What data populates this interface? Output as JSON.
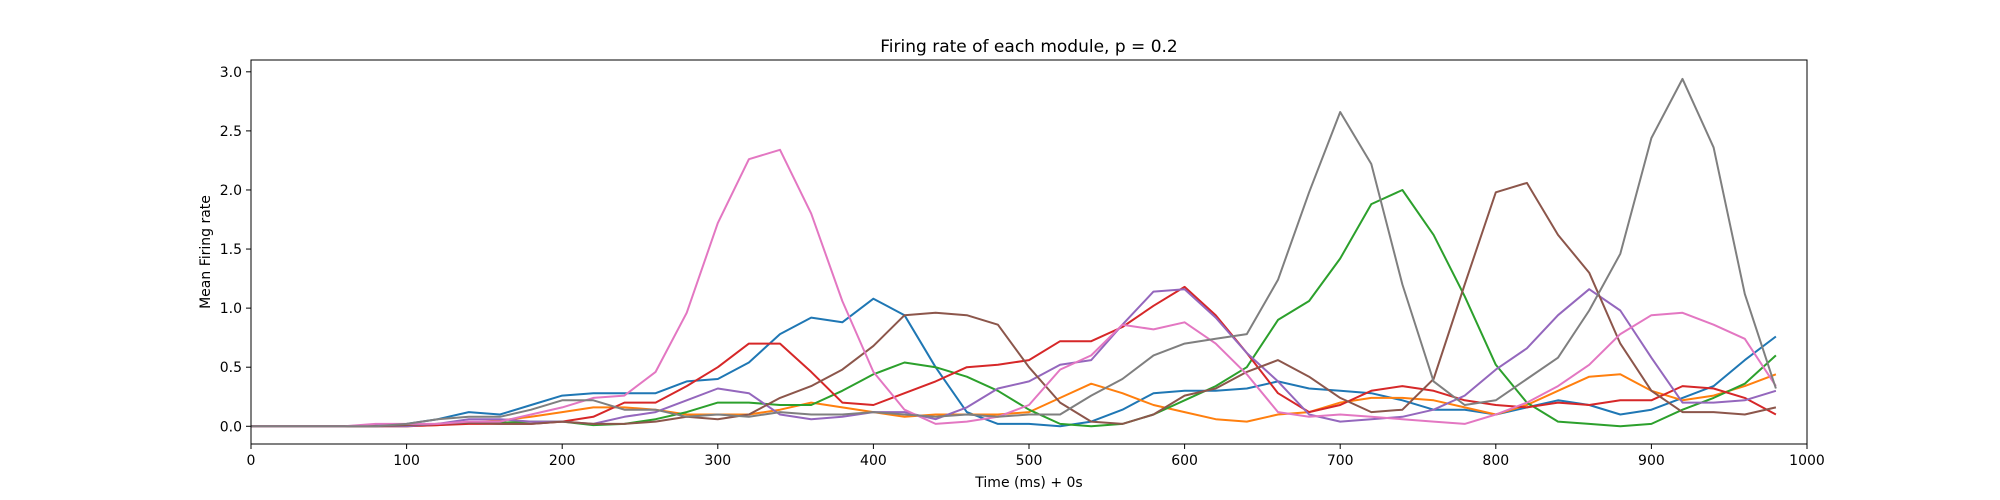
{
  "chart_data": {
    "type": "line",
    "title": "Firing rate of each module, p = 0.2",
    "xlabel": "Time (ms) + 0s",
    "ylabel": "Mean Firing rate",
    "xlim": [
      0,
      1000
    ],
    "ylim": [
      -0.15,
      3.1
    ],
    "xticks": [
      0,
      100,
      200,
      300,
      400,
      500,
      600,
      700,
      800,
      900,
      1000
    ],
    "yticks": [
      0.0,
      0.5,
      1.0,
      1.5,
      2.0,
      2.5,
      3.0
    ],
    "xtick_labels": [
      "0",
      "100",
      "200",
      "300",
      "400",
      "500",
      "600",
      "700",
      "800",
      "900",
      "1000"
    ],
    "ytick_labels": [
      "0.0",
      "0.5",
      "1.0",
      "1.5",
      "2.0",
      "2.5",
      "3.0"
    ],
    "grid": false,
    "x": [
      0,
      20,
      40,
      60,
      80,
      100,
      120,
      140,
      160,
      180,
      200,
      220,
      240,
      260,
      280,
      300,
      320,
      340,
      360,
      380,
      400,
      420,
      440,
      460,
      480,
      500,
      520,
      540,
      560,
      580,
      600,
      620,
      640,
      660,
      680,
      700,
      720,
      740,
      760,
      780,
      800,
      820,
      840,
      860,
      880,
      900,
      920,
      940,
      960,
      980
    ],
    "series": [
      {
        "color": "#1f77b4",
        "values": [
          0,
          0,
          0,
          0,
          0.01,
          0.02,
          0.06,
          0.12,
          0.1,
          0.18,
          0.26,
          0.28,
          0.28,
          0.28,
          0.38,
          0.4,
          0.54,
          0.78,
          0.92,
          0.88,
          1.08,
          0.94,
          0.5,
          0.12,
          0.02,
          0.02,
          0.0,
          0.04,
          0.14,
          0.28,
          0.3,
          0.3,
          0.32,
          0.38,
          0.32,
          0.3,
          0.28,
          0.22,
          0.14,
          0.14,
          0.1,
          0.16,
          0.22,
          0.18,
          0.1,
          0.14,
          0.24,
          0.34,
          0.56,
          0.76
        ]
      },
      {
        "color": "#ff7f0e",
        "values": [
          0,
          0,
          0,
          0,
          0,
          0,
          0.01,
          0.03,
          0.05,
          0.08,
          0.12,
          0.16,
          0.16,
          0.14,
          0.1,
          0.1,
          0.1,
          0.14,
          0.2,
          0.16,
          0.12,
          0.08,
          0.1,
          0.1,
          0.1,
          0.12,
          0.24,
          0.36,
          0.28,
          0.18,
          0.12,
          0.06,
          0.04,
          0.1,
          0.12,
          0.2,
          0.24,
          0.24,
          0.22,
          0.16,
          0.1,
          0.18,
          0.3,
          0.42,
          0.44,
          0.3,
          0.22,
          0.26,
          0.34,
          0.44
        ]
      },
      {
        "color": "#2ca02c",
        "values": [
          0,
          0,
          0,
          0,
          0,
          0.01,
          0.02,
          0.03,
          0.03,
          0.04,
          0.04,
          0.01,
          0.02,
          0.06,
          0.12,
          0.2,
          0.2,
          0.18,
          0.18,
          0.3,
          0.44,
          0.54,
          0.5,
          0.42,
          0.3,
          0.14,
          0.02,
          0.0,
          0.02,
          0.1,
          0.22,
          0.34,
          0.5,
          0.9,
          1.06,
          1.42,
          1.88,
          2.0,
          1.62,
          1.1,
          0.52,
          0.2,
          0.04,
          0.02,
          0.0,
          0.02,
          0.14,
          0.24,
          0.36,
          0.6
        ]
      },
      {
        "color": "#d62728",
        "values": [
          0,
          0,
          0,
          0,
          0,
          0,
          0.01,
          0.02,
          0.02,
          0.02,
          0.04,
          0.08,
          0.2,
          0.2,
          0.34,
          0.5,
          0.7,
          0.7,
          0.46,
          0.2,
          0.18,
          0.28,
          0.38,
          0.5,
          0.52,
          0.56,
          0.72,
          0.72,
          0.84,
          1.02,
          1.18,
          0.94,
          0.62,
          0.28,
          0.12,
          0.18,
          0.3,
          0.34,
          0.3,
          0.22,
          0.18,
          0.16,
          0.2,
          0.18,
          0.22,
          0.22,
          0.34,
          0.32,
          0.24,
          0.1
        ]
      },
      {
        "color": "#9467bd",
        "values": [
          0,
          0,
          0,
          0,
          0,
          0,
          0.02,
          0.06,
          0.06,
          0.04,
          0.04,
          0.02,
          0.08,
          0.12,
          0.22,
          0.32,
          0.28,
          0.1,
          0.06,
          0.08,
          0.12,
          0.12,
          0.06,
          0.16,
          0.32,
          0.38,
          0.52,
          0.56,
          0.86,
          1.14,
          1.16,
          0.92,
          0.62,
          0.38,
          0.1,
          0.04,
          0.06,
          0.08,
          0.14,
          0.26,
          0.48,
          0.66,
          0.94,
          1.16,
          0.98,
          0.58,
          0.2,
          0.2,
          0.22,
          0.3
        ]
      },
      {
        "color": "#8c564b",
        "values": [
          0,
          0,
          0,
          0,
          0,
          0.01,
          0.02,
          0.03,
          0.02,
          0.02,
          0.04,
          0.02,
          0.02,
          0.04,
          0.08,
          0.06,
          0.1,
          0.24,
          0.34,
          0.48,
          0.68,
          0.94,
          0.96,
          0.94,
          0.86,
          0.5,
          0.2,
          0.04,
          0.02,
          0.1,
          0.26,
          0.32,
          0.46,
          0.56,
          0.42,
          0.24,
          0.12,
          0.14,
          0.4,
          1.2,
          1.98,
          2.06,
          1.62,
          1.3,
          0.7,
          0.3,
          0.12,
          0.12,
          0.1,
          0.16
        ]
      },
      {
        "color": "#e377c2",
        "values": [
          0,
          0,
          0,
          0,
          0.02,
          0.02,
          0.02,
          0.04,
          0.04,
          0.1,
          0.16,
          0.24,
          0.26,
          0.46,
          0.96,
          1.72,
          2.26,
          2.34,
          1.8,
          1.06,
          0.46,
          0.14,
          0.02,
          0.04,
          0.08,
          0.18,
          0.48,
          0.6,
          0.86,
          0.82,
          0.88,
          0.7,
          0.44,
          0.12,
          0.08,
          0.1,
          0.08,
          0.06,
          0.04,
          0.02,
          0.1,
          0.2,
          0.34,
          0.52,
          0.78,
          0.94,
          0.96,
          0.86,
          0.74,
          0.34
        ]
      },
      {
        "color": "#7f7f7f",
        "values": [
          0,
          0,
          0,
          0,
          0,
          0.02,
          0.06,
          0.08,
          0.08,
          0.14,
          0.22,
          0.22,
          0.14,
          0.14,
          0.08,
          0.1,
          0.08,
          0.12,
          0.1,
          0.1,
          0.12,
          0.1,
          0.08,
          0.1,
          0.08,
          0.1,
          0.1,
          0.26,
          0.4,
          0.6,
          0.7,
          0.74,
          0.78,
          1.24,
          1.98,
          2.66,
          2.22,
          1.2,
          0.38,
          0.18,
          0.22,
          0.4,
          0.58,
          0.98,
          1.46,
          2.44,
          2.94,
          2.36,
          1.12,
          0.32
        ]
      }
    ]
  }
}
